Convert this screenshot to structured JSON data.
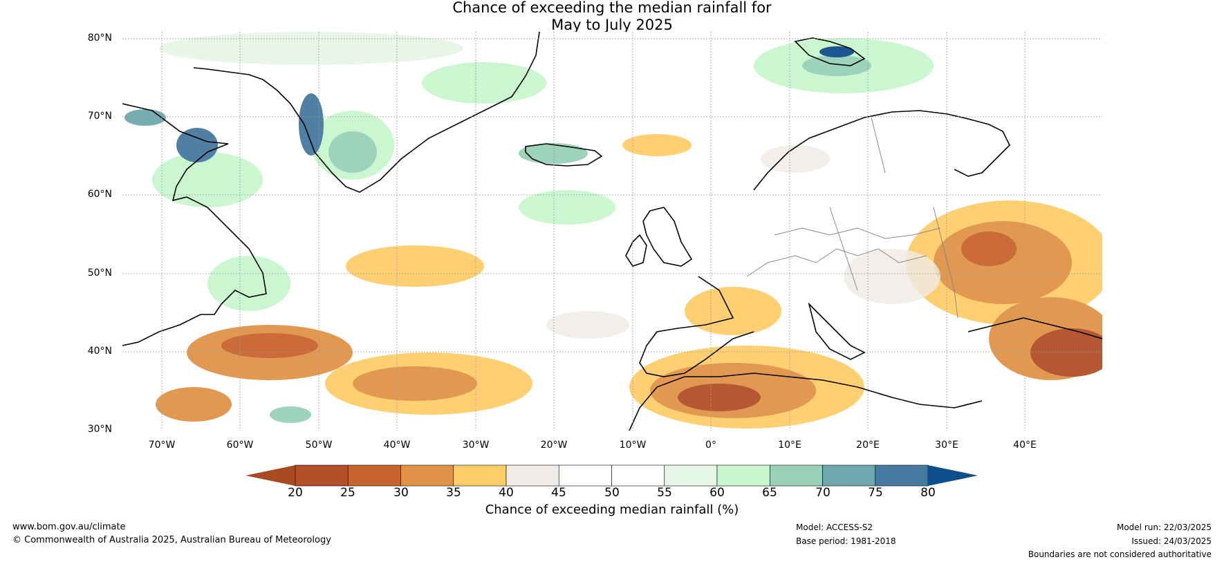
{
  "title": {
    "line1": "Chance of exceeding the median rainfall for",
    "line2": "May to July 2025"
  },
  "map": {
    "lat_labels": [
      "80°N",
      "70°N",
      "60°N",
      "50°N",
      "40°N",
      "30°N"
    ],
    "lon_labels": [
      "70°W",
      "60°W",
      "50°W",
      "40°W",
      "30°W",
      "20°W",
      "10°W",
      "0°",
      "10°E",
      "20°E",
      "30°E",
      "40°E"
    ],
    "lat_range": [
      30,
      80
    ],
    "lon_range": [
      -75,
      50
    ],
    "land_color": "#ffffff",
    "coastline_color": "#000000",
    "border_color": "#888888"
  },
  "colorbar": {
    "ticks": [
      "20",
      "25",
      "30",
      "35",
      "40",
      "45",
      "50",
      "55",
      "60",
      "65",
      "70",
      "75",
      "80"
    ],
    "colors": [
      "#a84b22",
      "#b3502a",
      "#c8642f",
      "#e09448",
      "#fece6a",
      "#efebe6",
      "#ffffff",
      "#ffffff",
      "#e6f6e6",
      "#c8f7ce",
      "#98d0b9",
      "#6fa9ad",
      "#467aa0",
      "#104e8b"
    ],
    "label": "Chance of exceeding median rainfall (%)"
  },
  "footer": {
    "website": "www.bom.gov.au/climate",
    "copyright": "© Commonwealth of Australia 2025, Australian Bureau of Meteorology",
    "model": "Model: ACCESS-S2",
    "base_period": "Base period: 1981-2018",
    "model_run": "Model run: 22/03/2025",
    "issued": "Issued: 24/03/2025",
    "disclaimer": "Boundaries are not considered authoritative"
  }
}
